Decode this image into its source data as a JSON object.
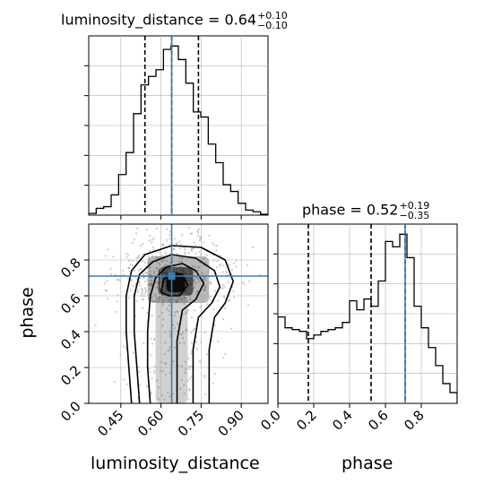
{
  "panels": {
    "luminosity_hist": {
      "title_name": "luminosity_distance",
      "median": "0.64",
      "err_plus": "+0.10",
      "err_minus": "−0.10"
    },
    "phase_hist": {
      "title_name": "phase",
      "median": "0.52",
      "err_plus": "+0.19",
      "err_minus": "−0.35"
    },
    "scatter": {
      "xlabel": "luminosity_distance",
      "ylabel": "phase"
    },
    "phase_axis_label": "phase"
  },
  "colors": {
    "truth": "#3b7eb5",
    "line": "#000000",
    "grid": "#b0b0b0"
  },
  "chart_data": [
    {
      "type": "histogram",
      "parameter": "luminosity_distance",
      "xlim": [
        0.33,
        1.0
      ],
      "bins": [
        0.33,
        0.3579,
        0.3858,
        0.4138,
        0.4417,
        0.4696,
        0.4975,
        0.5254,
        0.5533,
        0.5813,
        0.6092,
        0.6371,
        0.665,
        0.6929,
        0.7208,
        0.7488,
        0.7767,
        0.8046,
        0.8325,
        0.8604,
        0.8883,
        0.9163,
        0.9442,
        0.9721,
        1.0
      ],
      "values": [
        0.01,
        0.04,
        0.05,
        0.12,
        0.24,
        0.37,
        0.6,
        0.77,
        0.82,
        0.86,
        0.98,
        1.0,
        0.92,
        0.78,
        0.61,
        0.58,
        0.42,
        0.31,
        0.18,
        0.14,
        0.07,
        0.03,
        0.02,
        0.005
      ],
      "quantiles": [
        0.54,
        0.64,
        0.74
      ],
      "truth": 0.64,
      "grid": true
    },
    {
      "type": "histogram",
      "parameter": "phase",
      "xlim": [
        0.0,
        1.0
      ],
      "xticks": [
        "0.0",
        "0.2",
        "0.4",
        "0.6",
        "0.8"
      ],
      "bins": [
        0.0,
        0.04,
        0.08,
        0.12,
        0.16,
        0.2,
        0.24,
        0.28,
        0.32,
        0.36,
        0.4,
        0.44,
        0.48,
        0.52,
        0.56,
        0.6,
        0.64,
        0.68,
        0.72,
        0.76,
        0.8,
        0.84,
        0.88,
        0.92,
        0.96,
        1.0
      ],
      "values": [
        0.48,
        0.42,
        0.41,
        0.4,
        0.36,
        0.38,
        0.4,
        0.41,
        0.42,
        0.45,
        0.57,
        0.52,
        0.58,
        0.54,
        0.68,
        0.9,
        0.87,
        0.94,
        0.81,
        0.54,
        0.42,
        0.31,
        0.21,
        0.11,
        0.06
      ],
      "quantiles": [
        0.17,
        0.52,
        0.71
      ],
      "truth": 0.71,
      "grid": true
    },
    {
      "type": "scatter",
      "x_parameter": "luminosity_distance",
      "y_parameter": "phase",
      "xlim": [
        0.33,
        1.0
      ],
      "ylim": [
        0.0,
        1.0
      ],
      "xticks": [
        "0.45",
        "0.60",
        "0.75",
        "0.90"
      ],
      "yticks": [
        "0.0",
        "0.2",
        "0.4",
        "0.6",
        "0.8"
      ],
      "truth": [
        0.64,
        0.71
      ],
      "contours": [
        [
          [
            0.49,
            0.0
          ],
          [
            0.48,
            0.2
          ],
          [
            0.47,
            0.4
          ],
          [
            0.47,
            0.6
          ],
          [
            0.49,
            0.74
          ],
          [
            0.54,
            0.83
          ],
          [
            0.64,
            0.88
          ],
          [
            0.75,
            0.87
          ],
          [
            0.84,
            0.8
          ],
          [
            0.87,
            0.68
          ],
          [
            0.84,
            0.56
          ],
          [
            0.8,
            0.48
          ],
          [
            0.78,
            0.3
          ],
          [
            0.78,
            0.0
          ]
        ],
        [
          [
            0.52,
            0.0
          ],
          [
            0.51,
            0.2
          ],
          [
            0.5,
            0.4
          ],
          [
            0.5,
            0.6
          ],
          [
            0.52,
            0.72
          ],
          [
            0.57,
            0.79
          ],
          [
            0.64,
            0.83
          ],
          [
            0.73,
            0.81
          ],
          [
            0.8,
            0.74
          ],
          [
            0.82,
            0.65
          ],
          [
            0.79,
            0.56
          ],
          [
            0.74,
            0.48
          ],
          [
            0.72,
            0.3
          ],
          [
            0.72,
            0.0
          ]
        ],
        [
          [
            0.56,
            0.0
          ],
          [
            0.55,
            0.2
          ],
          [
            0.55,
            0.4
          ],
          [
            0.56,
            0.6
          ],
          [
            0.58,
            0.7
          ],
          [
            0.62,
            0.76
          ],
          [
            0.68,
            0.78
          ],
          [
            0.73,
            0.74
          ],
          [
            0.76,
            0.67
          ],
          [
            0.73,
            0.58
          ],
          [
            0.68,
            0.52
          ],
          [
            0.66,
            0.35
          ],
          [
            0.66,
            0.0
          ]
        ],
        [
          [
            0.6,
            0.62
          ],
          [
            0.61,
            0.69
          ],
          [
            0.64,
            0.73
          ],
          [
            0.68,
            0.72
          ],
          [
            0.7,
            0.66
          ],
          [
            0.67,
            0.6
          ],
          [
            0.63,
            0.6
          ],
          [
            0.6,
            0.62
          ]
        ]
      ],
      "grid": true
    }
  ]
}
